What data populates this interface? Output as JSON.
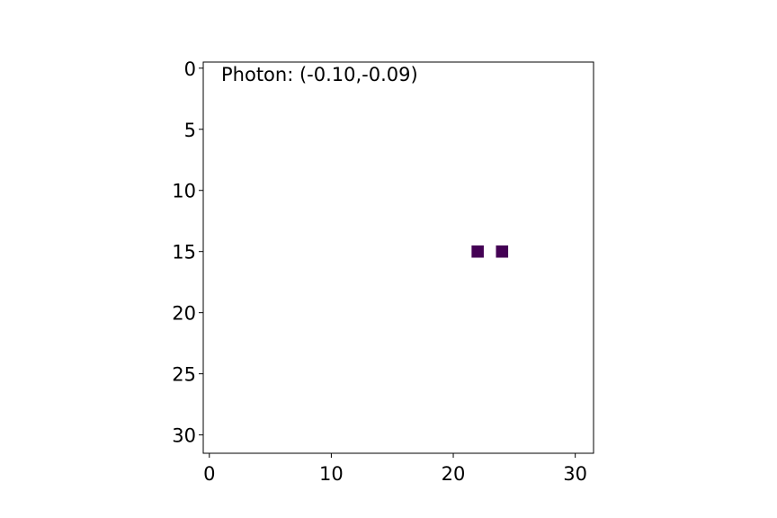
{
  "chart_data": {
    "type": "heatmap",
    "title": "",
    "xlabel": "",
    "ylabel": "",
    "xlim": [
      -0.5,
      31.5
    ],
    "ylim": [
      31.5,
      -0.5
    ],
    "y_inverted": true,
    "grid": false,
    "x_ticks": [
      0,
      10,
      20,
      30
    ],
    "y_ticks": [
      0,
      5,
      10,
      15,
      20,
      25,
      30
    ],
    "cells": [
      {
        "x": 22,
        "y": 15,
        "value": 1
      },
      {
        "x": 24,
        "y": 15,
        "value": 1
      }
    ],
    "cell_color": "#440154",
    "background_color": "#ffffff",
    "annotation": "Photon: (-0.10,-0.09)"
  }
}
